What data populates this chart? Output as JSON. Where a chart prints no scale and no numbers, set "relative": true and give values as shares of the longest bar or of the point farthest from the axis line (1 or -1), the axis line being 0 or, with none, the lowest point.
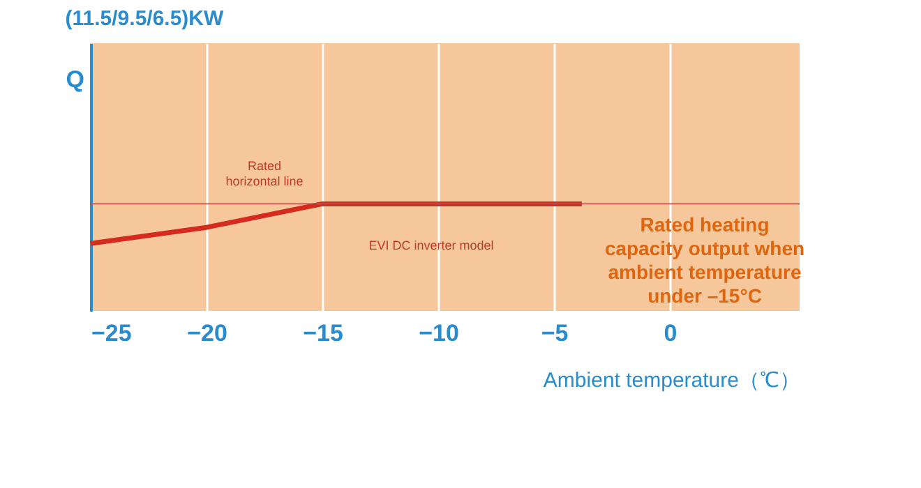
{
  "chart_data": {
    "type": "line",
    "title": "(11.5/9.5/6.5)KW",
    "ylabel": "Q",
    "xlabel": "Ambient temperature（℃）",
    "relative": true,
    "x": [
      -25,
      -20,
      -15,
      -3.8
    ],
    "series": [
      {
        "color": "#d42b1e",
        "values": [
          0.63,
          0.78,
          1,
          1
        ]
      }
    ],
    "xlim": [
      -25,
      5.6
    ],
    "xticks": [
      -25,
      -20,
      -15,
      -10,
      -5,
      0
    ],
    "grid": "x",
    "marker": "none",
    "line_style": "solid",
    "ref_lines": [
      {
        "axis": "y",
        "value": 1,
        "label": "Rated horizontal line",
        "color": "#c0504d"
      }
    ],
    "annotations": [
      {
        "text": "EVI DC inverter model",
        "x": -13,
        "y": 1
      },
      "Rated heating capacity output when ambient temperature under –15°C"
    ]
  }
}
